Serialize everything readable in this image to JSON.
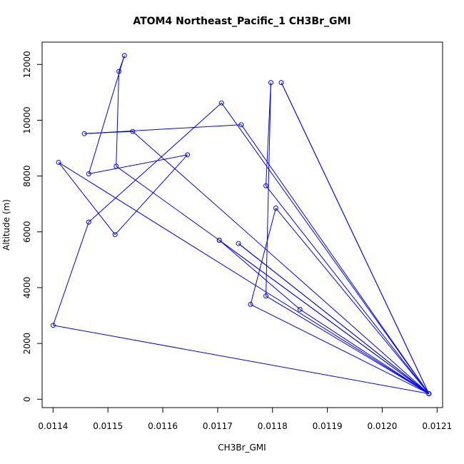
{
  "chart_data": {
    "type": "line",
    "title": "ATOM4 Northeast_Pacific_1 CH3Br_GMI",
    "xlabel": "CH3Br_GMI",
    "ylabel": "Altitude (m)",
    "xlim": [
      0.01138,
      0.01211
    ],
    "ylim": [
      -300,
      12800
    ],
    "x_ticks": [
      0.0114,
      0.0115,
      0.0116,
      0.0117,
      0.0118,
      0.0119,
      0.012,
      0.0121
    ],
    "x_tick_labels": [
      "0.0114",
      "0.0115",
      "0.0116",
      "0.0117",
      "0.0118",
      "0.0119",
      "0.0120",
      "0.0121"
    ],
    "y_ticks": [
      0,
      2000,
      4000,
      6000,
      8000,
      10000,
      12000
    ],
    "y_tick_labels": [
      "0",
      "2000",
      "4000",
      "6000",
      "8000",
      "10000",
      "12000"
    ],
    "grid": false,
    "legend": "none",
    "line_color": "#0000ff",
    "marker": "open-circle",
    "series": [
      {
        "points": [
          [
            0.012085,
            200
          ],
          [
            0.0114,
            2650
          ],
          [
            0.011465,
            6350
          ],
          [
            0.011707,
            10620
          ],
          [
            0.012085,
            200
          ],
          [
            0.011703,
            5700
          ],
          [
            0.012085,
            200
          ],
          [
            0.011738,
            5580
          ],
          [
            0.012085,
            200
          ],
          [
            0.01176,
            3400
          ],
          [
            0.011806,
            6850
          ],
          [
            0.012085,
            200
          ],
          [
            0.01185,
            3220
          ],
          [
            0.011703,
            5700
          ],
          [
            0.011515,
            8350
          ],
          [
            0.01152,
            11750
          ],
          [
            0.01153,
            12320
          ],
          [
            0.011465,
            8080
          ],
          [
            0.011645,
            8760
          ],
          [
            0.011513,
            5900
          ],
          [
            0.01141,
            8490
          ],
          [
            0.012085,
            200
          ],
          [
            0.011788,
            3700
          ],
          [
            0.011797,
            11350
          ],
          [
            0.011788,
            7650
          ],
          [
            0.012085,
            200
          ],
          [
            0.011816,
            11350
          ],
          [
            0.012085,
            200
          ],
          [
            0.011743,
            9840
          ],
          [
            0.011457,
            9520
          ],
          [
            0.011545,
            9600
          ],
          [
            0.012085,
            200
          ]
        ]
      }
    ]
  }
}
